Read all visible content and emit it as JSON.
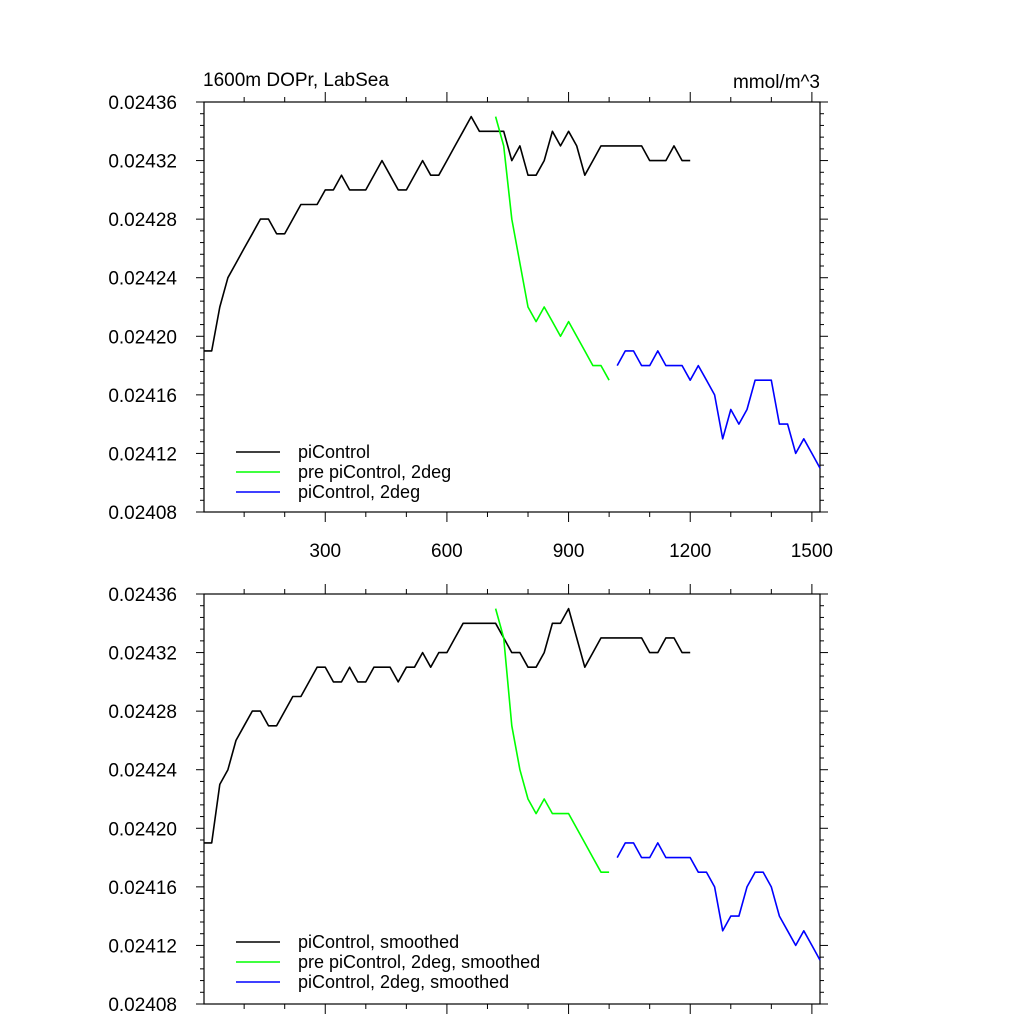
{
  "chart_data": [
    {
      "type": "line",
      "title": "1600m DOPr, LabSea",
      "units": "mmol/m^3",
      "xlabel": "",
      "ylabel": "",
      "xlim": [
        1,
        1520
      ],
      "ylim": [
        0.02408,
        0.02436
      ],
      "xticks": [
        "300",
        "600",
        "900",
        "1200",
        "1500"
      ],
      "yticks": [
        "0.02436",
        "0.02432",
        "0.02428",
        "0.02424",
        "0.02420",
        "0.02416",
        "0.02412",
        "0.02408"
      ],
      "legend": {
        "position": "bottom-left",
        "entries": [
          "piControl",
          "pre piControl, 2deg",
          "piControl, 2deg"
        ]
      },
      "series": [
        {
          "name": "piControl",
          "color": "#000000",
          "x": [
            1,
            20,
            40,
            60,
            80,
            100,
            120,
            140,
            160,
            180,
            200,
            220,
            240,
            260,
            280,
            300,
            320,
            340,
            360,
            380,
            400,
            420,
            440,
            460,
            480,
            500,
            520,
            540,
            560,
            580,
            600,
            620,
            640,
            660,
            680,
            700,
            720,
            740,
            760,
            780,
            800,
            820,
            840,
            860,
            880,
            900,
            920,
            940,
            960,
            980,
            1000,
            1020,
            1040,
            1060,
            1080,
            1100,
            1120,
            1140,
            1160,
            1180,
            1200
          ],
          "y": [
            0.02419,
            0.02419,
            0.02422,
            0.02424,
            0.02425,
            0.02426,
            0.02427,
            0.02428,
            0.02428,
            0.02427,
            0.02427,
            0.02428,
            0.02429,
            0.02429,
            0.02429,
            0.0243,
            0.0243,
            0.02431,
            0.0243,
            0.0243,
            0.0243,
            0.02431,
            0.02432,
            0.02431,
            0.0243,
            0.0243,
            0.02431,
            0.02432,
            0.02431,
            0.02431,
            0.02432,
            0.02433,
            0.02434,
            0.02435,
            0.02434,
            0.02434,
            0.02434,
            0.02434,
            0.02432,
            0.02433,
            0.02431,
            0.02431,
            0.02432,
            0.02434,
            0.02433,
            0.02434,
            0.02433,
            0.02431,
            0.02432,
            0.02433,
            0.02433,
            0.02433,
            0.02433,
            0.02433,
            0.02433,
            0.02432,
            0.02432,
            0.02432,
            0.02433,
            0.02432,
            0.02432
          ]
        },
        {
          "name": "pre piControl, 2deg",
          "color": "#00ff00",
          "x": [
            720,
            740,
            760,
            780,
            800,
            820,
            840,
            860,
            880,
            900,
            920,
            940,
            960,
            980,
            1000
          ],
          "y": [
            0.02435,
            0.02433,
            0.02428,
            0.02425,
            0.02422,
            0.02421,
            0.02422,
            0.02421,
            0.0242,
            0.02421,
            0.0242,
            0.02419,
            0.02418,
            0.02418,
            0.02417
          ]
        },
        {
          "name": "piControl, 2deg",
          "color": "#0000ff",
          "x": [
            1020,
            1040,
            1060,
            1080,
            1100,
            1120,
            1140,
            1160,
            1180,
            1200,
            1220,
            1240,
            1260,
            1280,
            1300,
            1320,
            1340,
            1360,
            1380,
            1400,
            1420,
            1440,
            1460,
            1480,
            1500,
            1520
          ],
          "y": [
            0.02418,
            0.02419,
            0.02419,
            0.02418,
            0.02418,
            0.02419,
            0.02418,
            0.02418,
            0.02418,
            0.02417,
            0.02418,
            0.02417,
            0.02416,
            0.02413,
            0.02415,
            0.02414,
            0.02415,
            0.02417,
            0.02417,
            0.02417,
            0.02414,
            0.02414,
            0.02412,
            0.02413,
            0.02412,
            0.02411
          ]
        }
      ]
    },
    {
      "type": "line",
      "title": "",
      "units": "",
      "xlabel": "",
      "ylabel": "",
      "xlim": [
        1,
        1520
      ],
      "ylim": [
        0.02408,
        0.02436
      ],
      "xticks": [],
      "yticks": [
        "0.02436",
        "0.02432",
        "0.02428",
        "0.02424",
        "0.02420",
        "0.02416",
        "0.02412",
        "0.02408"
      ],
      "legend": {
        "position": "bottom-left",
        "entries": [
          "piControl, smoothed",
          "pre piControl, 2deg, smoothed",
          "piControl, 2deg, smoothed"
        ]
      },
      "series": [
        {
          "name": "piControl, smoothed",
          "color": "#000000",
          "x": [
            1,
            20,
            40,
            60,
            80,
            100,
            120,
            140,
            160,
            180,
            200,
            220,
            240,
            260,
            280,
            300,
            320,
            340,
            360,
            380,
            400,
            420,
            440,
            460,
            480,
            500,
            520,
            540,
            560,
            580,
            600,
            620,
            640,
            660,
            680,
            700,
            720,
            740,
            760,
            780,
            800,
            820,
            840,
            860,
            880,
            900,
            920,
            940,
            960,
            980,
            1000,
            1020,
            1040,
            1060,
            1080,
            1100,
            1120,
            1140,
            1160,
            1180,
            1200
          ],
          "y": [
            0.02419,
            0.02419,
            0.02423,
            0.02424,
            0.02426,
            0.02427,
            0.02428,
            0.02428,
            0.02427,
            0.02427,
            0.02428,
            0.02429,
            0.02429,
            0.0243,
            0.02431,
            0.02431,
            0.0243,
            0.0243,
            0.02431,
            0.0243,
            0.0243,
            0.02431,
            0.02431,
            0.02431,
            0.0243,
            0.02431,
            0.02431,
            0.02432,
            0.02431,
            0.02432,
            0.02432,
            0.02433,
            0.02434,
            0.02434,
            0.02434,
            0.02434,
            0.02434,
            0.02433,
            0.02432,
            0.02432,
            0.02431,
            0.02431,
            0.02432,
            0.02434,
            0.02434,
            0.02435,
            0.02433,
            0.02431,
            0.02432,
            0.02433,
            0.02433,
            0.02433,
            0.02433,
            0.02433,
            0.02433,
            0.02432,
            0.02432,
            0.02433,
            0.02433,
            0.02432,
            0.02432
          ]
        },
        {
          "name": "pre piControl, 2deg, smoothed",
          "color": "#00ff00",
          "x": [
            720,
            740,
            760,
            780,
            800,
            820,
            840,
            860,
            880,
            900,
            920,
            940,
            960,
            980,
            1000
          ],
          "y": [
            0.02435,
            0.02433,
            0.02427,
            0.02424,
            0.02422,
            0.02421,
            0.02422,
            0.02421,
            0.02421,
            0.02421,
            0.0242,
            0.02419,
            0.02418,
            0.02417,
            0.02417
          ]
        },
        {
          "name": "piControl, 2deg, smoothed",
          "color": "#0000ff",
          "x": [
            1020,
            1040,
            1060,
            1080,
            1100,
            1120,
            1140,
            1160,
            1180,
            1200,
            1220,
            1240,
            1260,
            1280,
            1300,
            1320,
            1340,
            1360,
            1380,
            1400,
            1420,
            1440,
            1460,
            1480,
            1500,
            1520
          ],
          "y": [
            0.02418,
            0.02419,
            0.02419,
            0.02418,
            0.02418,
            0.02419,
            0.02418,
            0.02418,
            0.02418,
            0.02418,
            0.02417,
            0.02417,
            0.02416,
            0.02413,
            0.02414,
            0.02414,
            0.02416,
            0.02417,
            0.02417,
            0.02416,
            0.02414,
            0.02413,
            0.02412,
            0.02413,
            0.02412,
            0.02411
          ]
        }
      ]
    }
  ]
}
